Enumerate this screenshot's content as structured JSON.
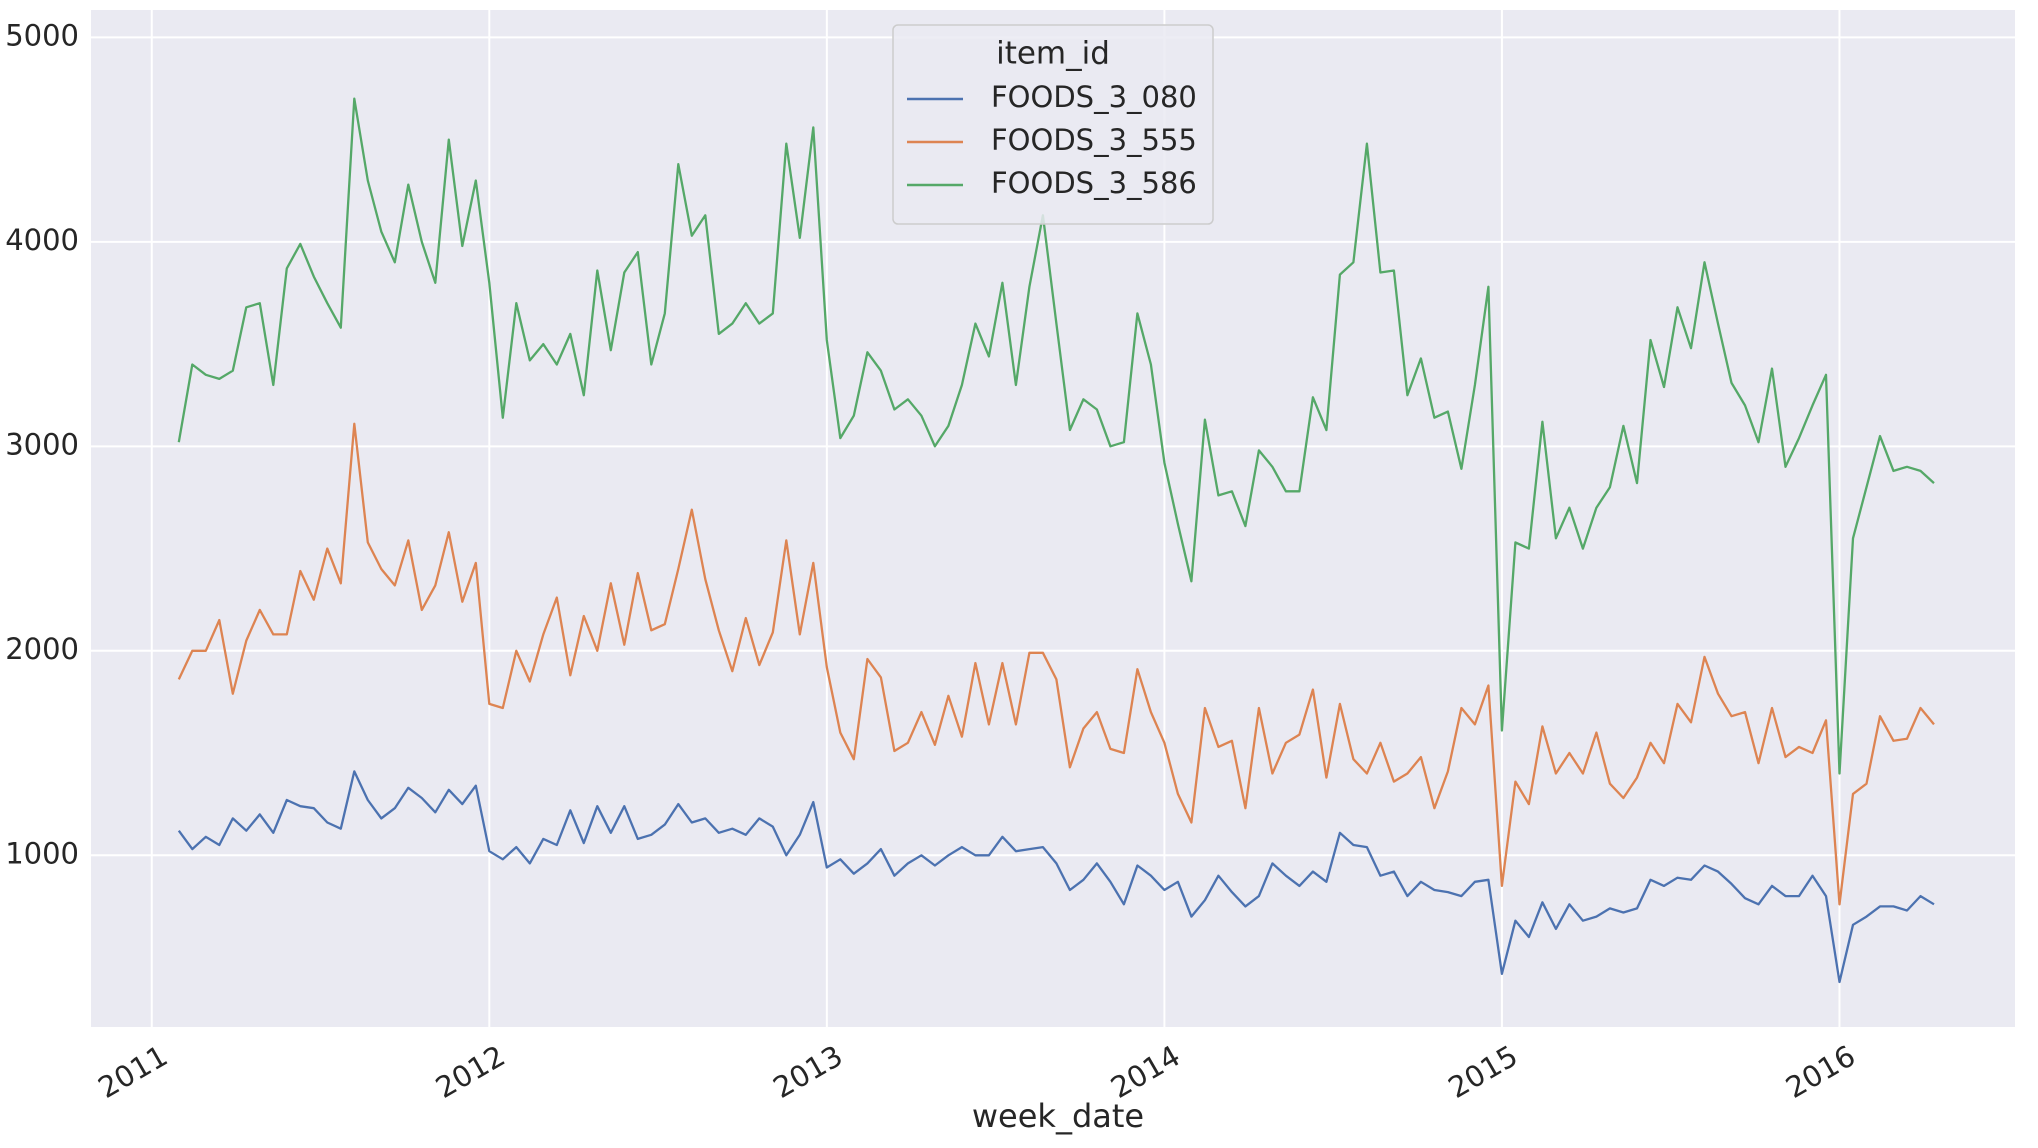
{
  "chart_data": {
    "type": "line",
    "x_label": "week_date",
    "legend_title": "item_id",
    "legend": "upper center",
    "grid": true,
    "x": [
      2011.08,
      2011.12,
      2011.16,
      2011.2,
      2011.24,
      2011.28,
      2011.32,
      2011.36,
      2011.4,
      2011.44,
      2011.48,
      2011.52,
      2011.56,
      2011.6,
      2011.64,
      2011.68,
      2011.72,
      2011.76,
      2011.8,
      2011.84,
      2011.88,
      2011.92,
      2011.96,
      2012,
      2012.04,
      2012.08,
      2012.12,
      2012.16,
      2012.2,
      2012.24,
      2012.28,
      2012.32,
      2012.36,
      2012.4,
      2012.44,
      2012.48,
      2012.52,
      2012.56,
      2012.6,
      2012.64,
      2012.68,
      2012.72,
      2012.76,
      2012.8,
      2012.84,
      2012.88,
      2012.92,
      2012.96,
      2013,
      2013.04,
      2013.08,
      2013.12,
      2013.16,
      2013.2,
      2013.24,
      2013.28,
      2013.32,
      2013.36,
      2013.4,
      2013.44,
      2013.48,
      2013.52,
      2013.56,
      2013.6,
      2013.64,
      2013.68,
      2013.72,
      2013.76,
      2013.8,
      2013.84,
      2013.88,
      2013.92,
      2013.96,
      2014,
      2014.04,
      2014.08,
      2014.12,
      2014.16,
      2014.2,
      2014.24,
      2014.28,
      2014.32,
      2014.36,
      2014.4,
      2014.44,
      2014.48,
      2014.52,
      2014.56,
      2014.6,
      2014.64,
      2014.68,
      2014.72,
      2014.76,
      2014.8,
      2014.84,
      2014.88,
      2014.92,
      2014.96,
      2015,
      2015.04,
      2015.08,
      2015.12,
      2015.16,
      2015.2,
      2015.24,
      2015.28,
      2015.32,
      2015.36,
      2015.4,
      2015.44,
      2015.48,
      2015.52,
      2015.56,
      2015.6,
      2015.64,
      2015.68,
      2015.72,
      2015.76,
      2015.8,
      2015.84,
      2015.88,
      2015.92,
      2015.96,
      2016,
      2016.04,
      2016.08,
      2016.12,
      2016.16,
      2016.2,
      2016.24,
      2016.28
    ],
    "series": [
      {
        "name": "FOODS_3_080",
        "color": "#4c72b0",
        "values": [
          1120,
          1030,
          1090,
          1050,
          1180,
          1120,
          1200,
          1110,
          1270,
          1240,
          1230,
          1160,
          1130,
          1410,
          1270,
          1180,
          1230,
          1330,
          1280,
          1210,
          1320,
          1250,
          1340,
          1020,
          980,
          1040,
          960,
          1080,
          1050,
          1220,
          1060,
          1240,
          1110,
          1240,
          1080,
          1100,
          1150,
          1250,
          1160,
          1180,
          1110,
          1130,
          1100,
          1180,
          1140,
          1000,
          1100,
          1260,
          940,
          980,
          910,
          960,
          1030,
          900,
          960,
          1000,
          950,
          1000,
          1040,
          1000,
          1000,
          1090,
          1020,
          1030,
          1040,
          960,
          830,
          880,
          960,
          870,
          760,
          950,
          900,
          830,
          870,
          700,
          780,
          900,
          820,
          750,
          800,
          960,
          900,
          850,
          920,
          870,
          1110,
          1050,
          1040,
          900,
          920,
          800,
          870,
          830,
          820,
          800,
          870,
          880,
          420,
          680,
          600,
          770,
          640,
          760,
          680,
          700,
          740,
          720,
          740,
          880,
          850,
          890,
          880,
          950,
          920,
          860,
          790,
          760,
          850,
          800,
          800,
          900,
          800,
          380,
          660,
          700,
          750,
          750,
          730,
          800,
          760
        ]
      },
      {
        "name": "FOODS_3_555",
        "color": "#dd8452",
        "values": [
          1860,
          2000,
          2000,
          2150,
          1790,
          2050,
          2200,
          2080,
          2080,
          2390,
          2250,
          2500,
          2330,
          3110,
          2530,
          2400,
          2320,
          2540,
          2200,
          2320,
          2580,
          2240,
          2430,
          1740,
          1720,
          2000,
          1850,
          2080,
          2260,
          1880,
          2170,
          2000,
          2330,
          2030,
          2380,
          2100,
          2130,
          2400,
          2690,
          2350,
          2100,
          1900,
          2160,
          1930,
          2090,
          2540,
          2080,
          2430,
          1920,
          1600,
          1470,
          1960,
          1870,
          1510,
          1550,
          1700,
          1540,
          1780,
          1580,
          1940,
          1640,
          1940,
          1640,
          1990,
          1990,
          1860,
          1430,
          1620,
          1700,
          1520,
          1500,
          1910,
          1700,
          1550,
          1300,
          1160,
          1720,
          1530,
          1560,
          1230,
          1720,
          1400,
          1550,
          1590,
          1810,
          1380,
          1740,
          1470,
          1400,
          1550,
          1360,
          1400,
          1480,
          1230,
          1410,
          1720,
          1640,
          1830,
          850,
          1360,
          1250,
          1630,
          1400,
          1500,
          1400,
          1600,
          1350,
          1280,
          1380,
          1550,
          1450,
          1740,
          1650,
          1970,
          1790,
          1680,
          1700,
          1450,
          1720,
          1480,
          1530,
          1500,
          1660,
          760,
          1300,
          1350,
          1680,
          1560,
          1570,
          1720,
          1640
        ]
      },
      {
        "name": "FOODS_3_586",
        "color": "#55a868",
        "values": [
          3020,
          3400,
          3350,
          3330,
          3370,
          3680,
          3700,
          3300,
          3870,
          3990,
          3830,
          3700,
          3580,
          4700,
          4300,
          4050,
          3900,
          4280,
          4000,
          3800,
          4500,
          3980,
          4300,
          3800,
          3140,
          3700,
          3420,
          3500,
          3400,
          3550,
          3250,
          3860,
          3470,
          3850,
          3950,
          3400,
          3650,
          4380,
          4030,
          4130,
          3550,
          3600,
          3700,
          3600,
          3650,
          4480,
          4020,
          4560,
          3520,
          3040,
          3150,
          3460,
          3370,
          3180,
          3230,
          3150,
          3000,
          3100,
          3300,
          3600,
          3440,
          3800,
          3300,
          3780,
          4130,
          3600,
          3080,
          3230,
          3180,
          3000,
          3020,
          3650,
          3400,
          2920,
          2620,
          2340,
          3130,
          2760,
          2780,
          2610,
          2980,
          2900,
          2780,
          2780,
          3240,
          3080,
          3840,
          3900,
          4480,
          3850,
          3860,
          3250,
          3430,
          3140,
          3170,
          2890,
          3300,
          3780,
          1610,
          2530,
          2500,
          3120,
          2550,
          2700,
          2500,
          2700,
          2800,
          3100,
          2820,
          3520,
          3290,
          3680,
          3480,
          3900,
          3600,
          3310,
          3200,
          3020,
          3380,
          2900,
          3040,
          3200,
          3350,
          1400,
          2550,
          2800,
          3050,
          2880,
          2900,
          2880,
          2820
        ]
      }
    ],
    "xlim": [
      2010.82,
      2016.52
    ],
    "xticks": [
      2011,
      2012,
      2013,
      2014,
      2015,
      2016
    ],
    "ylim": [
      160,
      5134
    ],
    "yticks": [
      1000,
      2000,
      3000,
      4000,
      5000
    ]
  }
}
